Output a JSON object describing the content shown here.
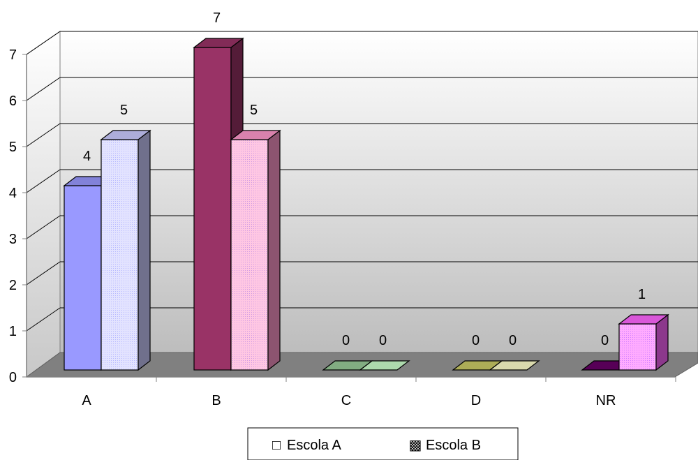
{
  "chart_data": {
    "type": "bar",
    "title": "",
    "xlabel": "",
    "ylabel": "",
    "categories": [
      "A",
      "B",
      "C",
      "D",
      "NR"
    ],
    "y_ticks": [
      "0",
      "1",
      "2",
      "3",
      "4",
      "5",
      "6",
      "7"
    ],
    "ylim": [
      0,
      7
    ],
    "grid": true,
    "legend_position": "bottom",
    "series": [
      {
        "name": "Escola A",
        "values": [
          4,
          7,
          0,
          0,
          0
        ],
        "labels": [
          "4",
          "7",
          "0",
          "0",
          "0"
        ],
        "colors": [
          "#9999ff",
          "#993366",
          "#99cc99",
          "#cccc66",
          "#660066"
        ]
      },
      {
        "name": "Escola B",
        "values": [
          5,
          5,
          0,
          0,
          1
        ],
        "labels": [
          "5",
          "5",
          "0",
          "0",
          "1"
        ],
        "colors": [
          "#ccccff",
          "#ff99cc",
          "#ccffcc",
          "#ffffcc",
          "#ff66ff"
        ]
      }
    ],
    "legend_marker_glyphs": [
      "□",
      "▩"
    ]
  }
}
